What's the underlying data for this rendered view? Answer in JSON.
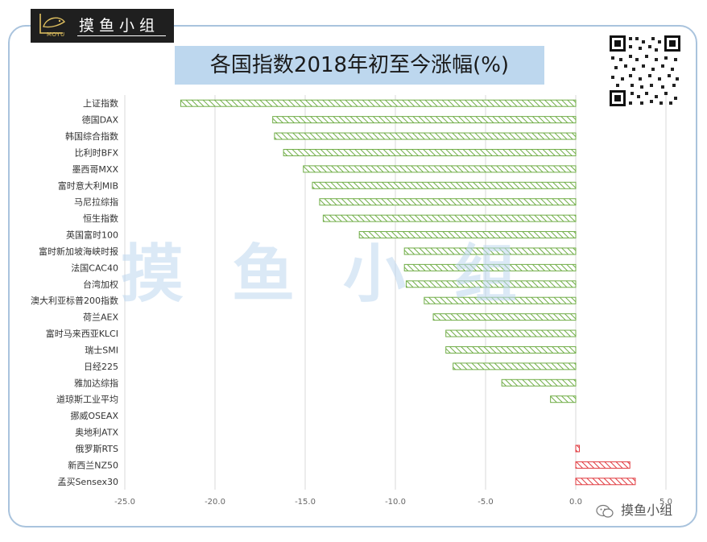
{
  "brand": {
    "logo_mark_text": "MOYU",
    "logo_text": "摸鱼小组",
    "watermark": "摸鱼小组",
    "wechat": "摸鱼小组"
  },
  "chart_data": {
    "type": "bar",
    "orientation": "horizontal",
    "title": "各国指数2018年初至今涨幅(%)",
    "xlabel": "",
    "ylabel": "",
    "xlim": [
      -25,
      5
    ],
    "ticks": [
      "-25.0",
      "-20.0",
      "-15.0",
      "-10.0",
      "-5.0",
      "0.0",
      "5.0"
    ],
    "grid": "vertical",
    "colors": {
      "negative": "#70ad47",
      "positive": "#e0393e"
    },
    "categories": [
      "上证指数",
      "德国DAX",
      "韩国综合指数",
      "比利时BFX",
      "墨西哥MXX",
      "富时意大利MIB",
      "马尼拉综指",
      "恒生指数",
      "英国富时100",
      "富时新加坡海峡时报",
      "法国CAC40",
      "台湾加权",
      "澳大利亚标普200指数",
      "荷兰AEX",
      "富时马来西亚KLCI",
      "瑞士SMI",
      "日经225",
      "雅加达综指",
      "道琼斯工业平均",
      "挪威OSEAX",
      "奥地利ATX",
      "俄罗斯RTS",
      "新西兰NZ50",
      "孟买Sensex30"
    ],
    "values": [
      -21.9,
      -16.8,
      -16.7,
      -16.2,
      -15.1,
      -14.6,
      -14.2,
      -14.0,
      -12.0,
      -9.5,
      -9.5,
      -9.4,
      -8.4,
      -7.9,
      -7.2,
      -7.2,
      -6.8,
      -4.1,
      -1.4,
      0.0,
      0.0,
      0.2,
      3.0,
      3.3
    ]
  }
}
